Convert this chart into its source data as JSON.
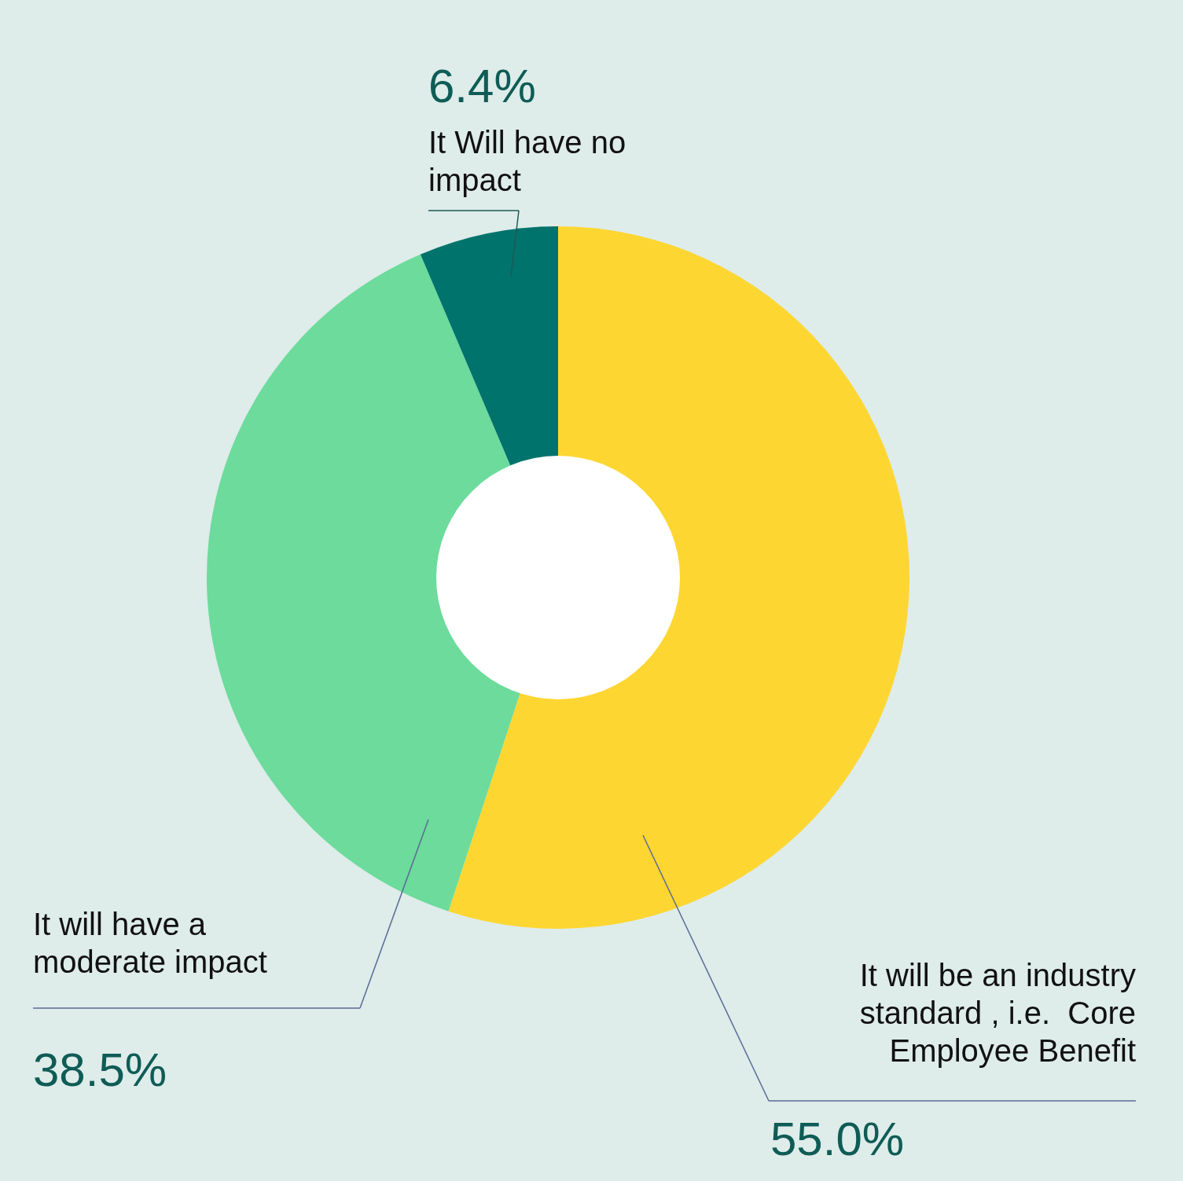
{
  "chart_data": {
    "type": "donut",
    "categories": [
      "It will be an industry standard , i.e.  Core Employee Benefit",
      "It will have a moderate impact",
      "It Will have no impact"
    ],
    "values": [
      55.0,
      38.5,
      6.4
    ],
    "colors": [
      "#fed631",
      "#6cdb9c",
      "#00736c"
    ],
    "value_labels": [
      "55.0%",
      "38.5%",
      "6.4%"
    ]
  }
}
